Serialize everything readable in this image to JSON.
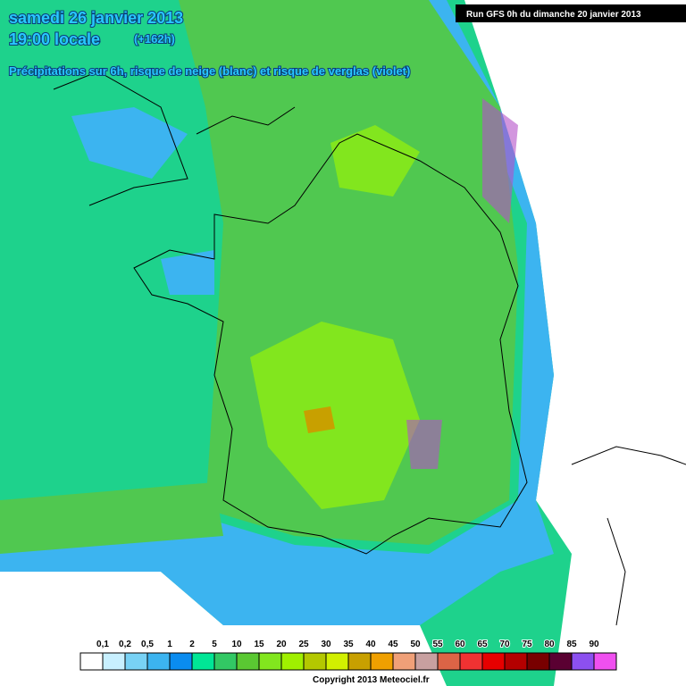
{
  "header": {
    "date": "samedi 26 janvier 2013",
    "time": "19:00 locale",
    "lead": "(+162h)",
    "subtitle": "Précipitations sur 6h, risque de neige (blanc) et risque de verglas (violet)",
    "run": "Run GFS 0h du dimanche 20 janvier 2013"
  },
  "legend": {
    "items": [
      {
        "label": "0,1",
        "color": "#ffffff"
      },
      {
        "label": "0,2",
        "color": "#c8f0ff"
      },
      {
        "label": "0,5",
        "color": "#78d2f5"
      },
      {
        "label": "1",
        "color": "#3cb4f0"
      },
      {
        "label": "2",
        "color": "#0a8cf0"
      },
      {
        "label": "5",
        "color": "#00e696"
      },
      {
        "label": "10",
        "color": "#32c864"
      },
      {
        "label": "15",
        "color": "#5ac832"
      },
      {
        "label": "20",
        "color": "#82e61e"
      },
      {
        "label": "25",
        "color": "#a0f000"
      },
      {
        "label": "30",
        "color": "#b4c800"
      },
      {
        "label": "35",
        "color": "#d2f000"
      },
      {
        "label": "40",
        "color": "#c8a000"
      },
      {
        "label": "45",
        "color": "#f0a000"
      },
      {
        "label": "50",
        "color": "#f0a078"
      },
      {
        "label": "55",
        "color": "#c8a0a0"
      },
      {
        "label": "60",
        "color": "#dc6446"
      },
      {
        "label": "65",
        "color": "#f03232"
      },
      {
        "label": "70",
        "color": "#e60000"
      },
      {
        "label": "75",
        "color": "#b40000"
      },
      {
        "label": "80",
        "color": "#780000"
      },
      {
        "label": "85",
        "color": "#5a0032"
      },
      {
        "label": "90",
        "color": "#8c50f0"
      }
    ],
    "last_color": "#f050f0"
  },
  "footer": {
    "copyright": "Copyright 2013 Meteociel.fr"
  }
}
